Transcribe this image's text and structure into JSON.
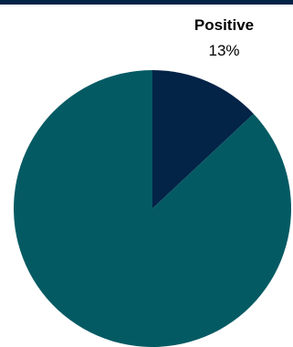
{
  "chart_data": {
    "type": "pie",
    "categories": [
      "Positive",
      null
    ],
    "values": [
      13,
      87
    ],
    "value_labels": [
      "13%",
      null
    ],
    "colors": [
      "#032347",
      "#045a63"
    ]
  }
}
